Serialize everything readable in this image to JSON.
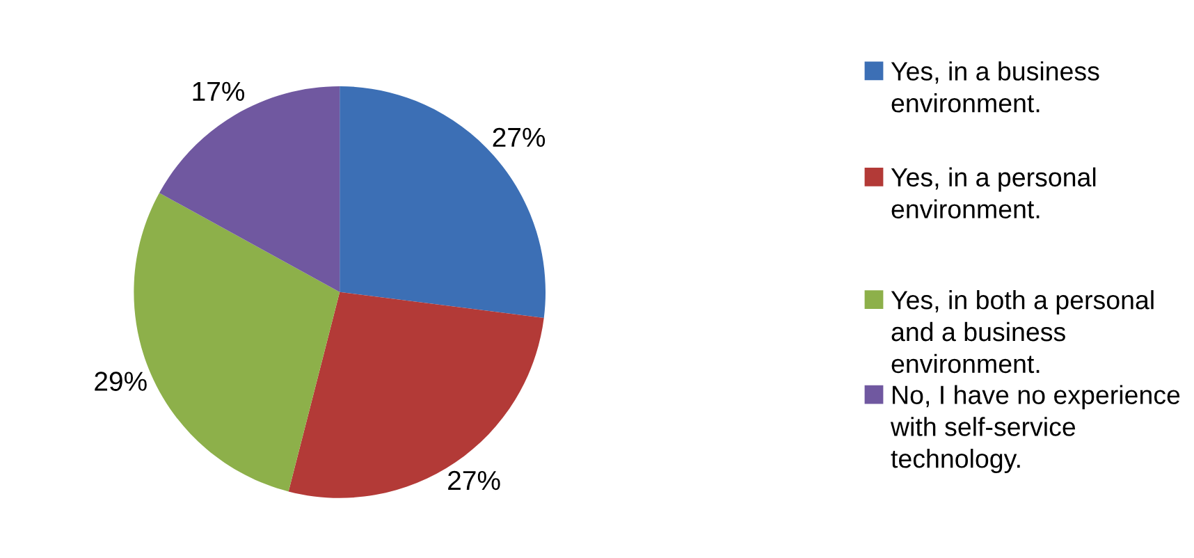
{
  "chart_data": {
    "type": "pie",
    "categories": [
      "Yes, in a business environment.",
      "Yes, in a personal environment.",
      "Yes, in both a personal and a business environment.",
      "No, I have no experience with self-service technology."
    ],
    "values": [
      27,
      27,
      29,
      17
    ],
    "colors": [
      "#3c6fb5",
      "#b33a37",
      "#8db04a",
      "#7058a0"
    ],
    "value_labels": [
      "27%",
      "27%",
      "29%",
      "17%"
    ],
    "legend": "right"
  }
}
